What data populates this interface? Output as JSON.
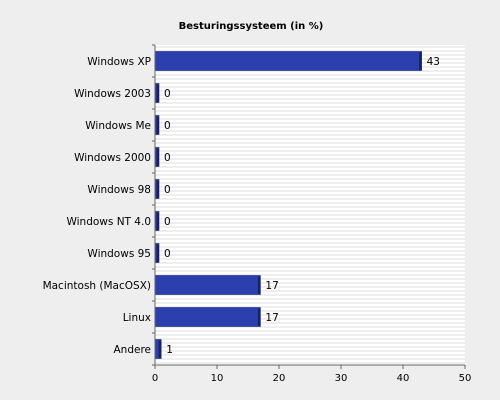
{
  "chart_data": {
    "type": "bar",
    "orientation": "horizontal",
    "title": "Besturingssysteem (in %)",
    "categories": [
      "Windows XP",
      "Windows 2003",
      "Windows Me",
      "Windows 2000",
      "Windows 98",
      "Windows NT 4.0",
      "Windows 95",
      "Macintosh (MacOSX)",
      "Linux",
      "Andere"
    ],
    "values": [
      43,
      0,
      0,
      0,
      0,
      0,
      0,
      17,
      17,
      1
    ],
    "xlim": [
      0,
      50
    ],
    "xticks": [
      0,
      10,
      20,
      30,
      40,
      50
    ],
    "xlabel": "",
    "ylabel": "",
    "grid": true,
    "legend": "none",
    "colors": {
      "bar": "#2b3fae",
      "bar_edge": "#1a2a7a",
      "bar_shadow": "#18225e",
      "plot_bg": "#ffffff",
      "grid": "#dddddd"
    }
  }
}
